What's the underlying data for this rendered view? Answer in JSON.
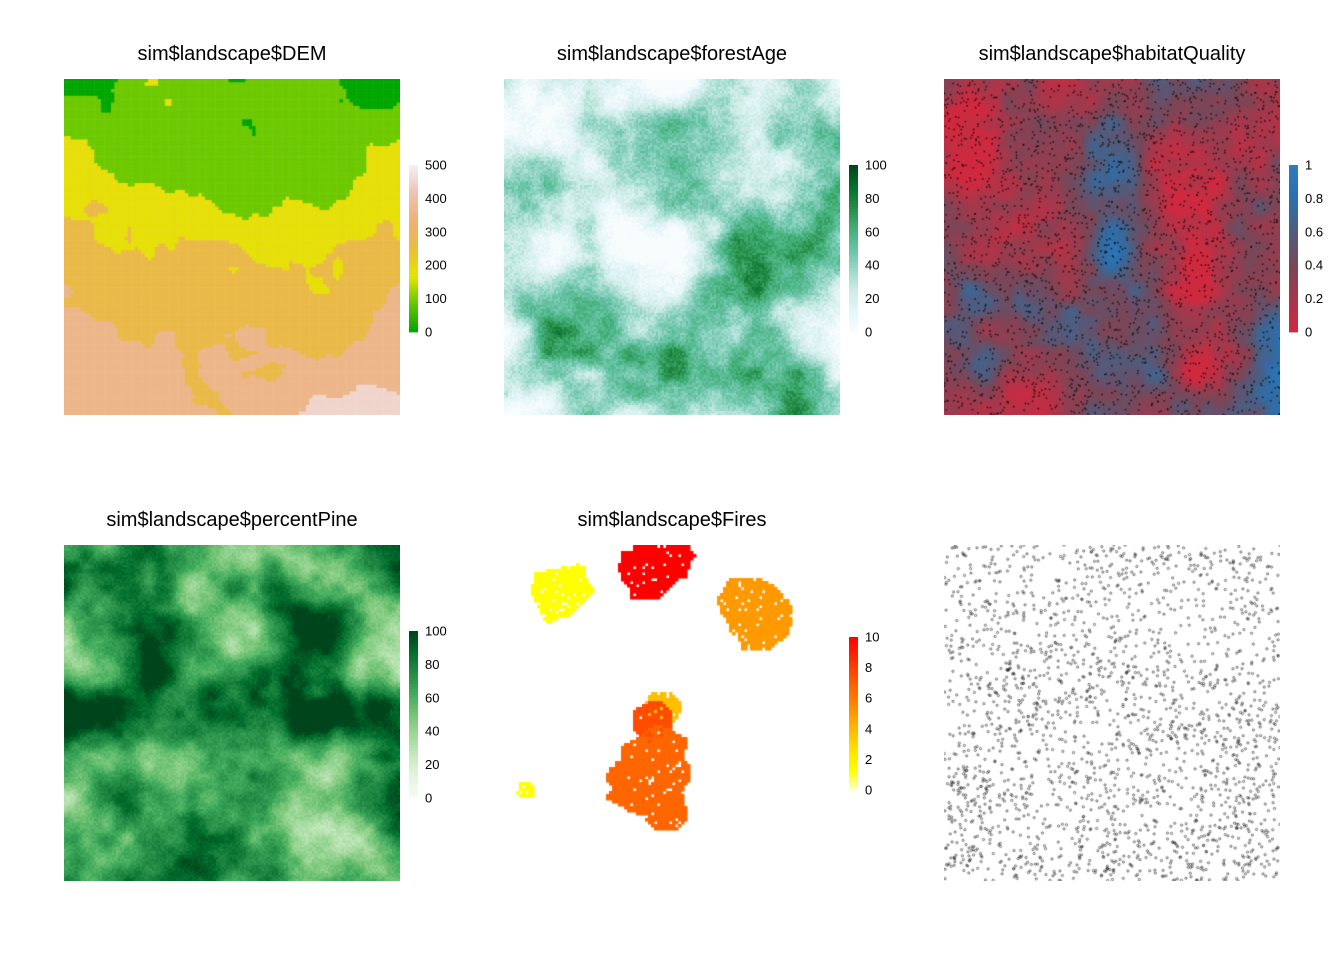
{
  "figure": {
    "panels": [
      {
        "id": "dem",
        "title": "sim$landscape$DEM",
        "legend": {
          "ticks": [
            "0",
            "100",
            "200",
            "300",
            "400",
            "500"
          ],
          "min": 0,
          "max": 500,
          "colors": [
            "#00a600",
            "#63c600",
            "#e6e600",
            "#e9bd3a",
            "#ecb176",
            "#efc2b3",
            "#f2f2f2"
          ]
        }
      },
      {
        "id": "forestAge",
        "title": "sim$landscape$forestAge",
        "legend": {
          "ticks": [
            "0",
            "20",
            "40",
            "60",
            "80",
            "100"
          ],
          "min": 0,
          "max": 100,
          "colors": [
            "#f7fcfd",
            "#e5f5f9",
            "#ccece6",
            "#99d8c9",
            "#66c2a4",
            "#41ae76",
            "#238b45",
            "#006d2c",
            "#00441b"
          ]
        }
      },
      {
        "id": "habitatQuality",
        "title": "sim$landscape$habitatQuality",
        "legend": {
          "ticks": [
            "0",
            "0.2",
            "0.4",
            "0.6",
            "0.8",
            "1"
          ],
          "min": 0,
          "max": 1,
          "colors": [
            "#d0293f",
            "#a4384c",
            "#784759",
            "#4e5d80",
            "#2c6fac",
            "#2f7bc0"
          ]
        }
      },
      {
        "id": "percentPine",
        "title": "sim$landscape$percentPine",
        "legend": {
          "ticks": [
            "0",
            "20",
            "40",
            "60",
            "80",
            "100"
          ],
          "min": 0,
          "max": 100,
          "colors": [
            "#f7fcf5",
            "#e5f5e0",
            "#c7e9c0",
            "#a1d99b",
            "#74c476",
            "#41ab5d",
            "#238b45",
            "#006d2c",
            "#00441b"
          ]
        }
      },
      {
        "id": "fires",
        "title": "sim$landscape$Fires",
        "legend": {
          "ticks": [
            "0",
            "2",
            "4",
            "6",
            "8",
            "10"
          ],
          "min": 0,
          "max": 10,
          "colors": [
            "#ffffcc",
            "#ffff00",
            "#ffe600",
            "#ffbf00",
            "#ff9900",
            "#ff7300",
            "#ff4d00",
            "#ff2600",
            "#ff0000"
          ]
        }
      },
      {
        "id": "points",
        "title": "",
        "legend": null
      }
    ]
  },
  "chart_data": [
    {
      "type": "heatmap",
      "title": "sim$landscape$DEM",
      "scale_min": 0,
      "scale_max": 500,
      "colorbar_ticks": [
        0,
        100,
        200,
        300,
        400,
        500
      ],
      "legend_position": "right"
    },
    {
      "type": "heatmap",
      "title": "sim$landscape$forestAge",
      "scale_min": 0,
      "scale_max": 100,
      "colorbar_ticks": [
        0,
        20,
        40,
        60,
        80,
        100
      ],
      "legend_position": "right"
    },
    {
      "type": "heatmap",
      "title": "sim$landscape$habitatQuality",
      "scale_min": 0,
      "scale_max": 1,
      "colorbar_ticks": [
        0,
        0.2,
        0.4,
        0.6,
        0.8,
        1
      ],
      "legend_position": "right",
      "overlay": "point agents"
    },
    {
      "type": "heatmap",
      "title": "sim$landscape$percentPine",
      "scale_min": 0,
      "scale_max": 100,
      "colorbar_ticks": [
        0,
        20,
        40,
        60,
        80,
        100
      ],
      "legend_position": "right"
    },
    {
      "type": "heatmap",
      "title": "sim$landscape$Fires",
      "scale_min": 0,
      "scale_max": 10,
      "colorbar_ticks": [
        0,
        2,
        4,
        6,
        8,
        10
      ],
      "legend_position": "right"
    },
    {
      "type": "scatter",
      "title": "",
      "legend_position": "none"
    }
  ]
}
